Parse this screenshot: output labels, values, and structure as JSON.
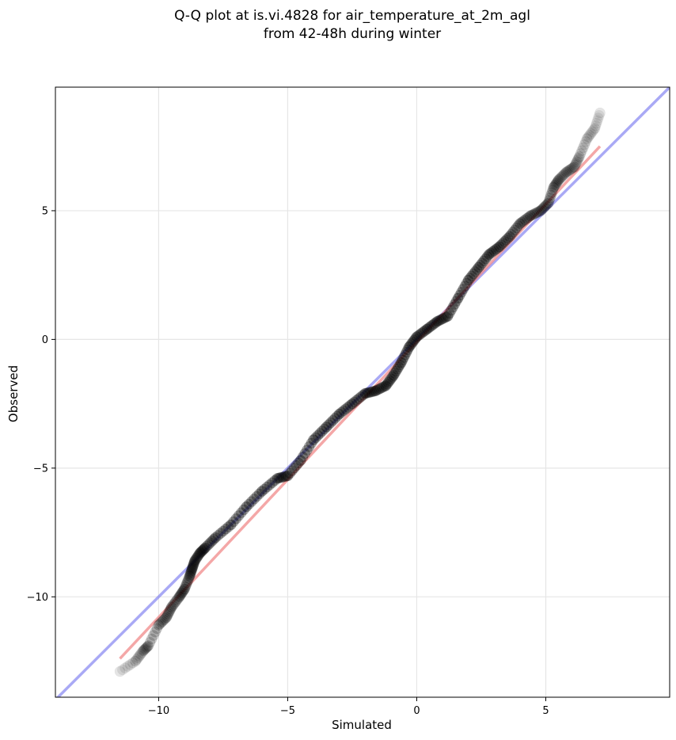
{
  "chart_data": {
    "type": "scatter",
    "title_line1": "Q-Q plot at is.vi.4828 for air_temperature_at_2m_agl",
    "title_line2": "from 42-48h during winter",
    "xlabel": "Simulated",
    "ylabel": "Observed",
    "xlim": [
      -14.0,
      9.8
    ],
    "ylim": [
      -13.9,
      9.8
    ],
    "grid": true,
    "x_ticks": [
      -10,
      -5,
      0,
      5
    ],
    "y_ticks": [
      -10,
      -5,
      0,
      5
    ],
    "x_tick_labels": [
      "−10",
      "−5",
      "0",
      "5"
    ],
    "y_tick_labels": [
      "−10",
      "−5",
      "0",
      "5"
    ],
    "identity_line": {
      "color": "#6f6fef"
    },
    "fit_line": {
      "color": "#f08a8a",
      "x": [
        -11.5,
        7.1
      ],
      "y": [
        -12.4,
        7.5
      ]
    },
    "colors": {
      "points": "#000000"
    },
    "points": {
      "x": [
        -11.5,
        -10.9,
        -10.6,
        -10.4,
        -10.0,
        -9.7,
        -9.5,
        -9.2,
        -9.0,
        -8.8,
        -8.7,
        -8.6,
        -8.4,
        -8.2,
        -7.8,
        -7.2,
        -6.6,
        -6.0,
        -5.4,
        -5.0,
        -4.5,
        -4.0,
        -3.5,
        -3.0,
        -2.5,
        -2.0,
        -1.6,
        -1.2,
        -0.9,
        -0.6,
        -0.3,
        0.0,
        0.4,
        0.8,
        1.2,
        1.6,
        2.0,
        2.4,
        2.8,
        3.2,
        3.6,
        4.0,
        4.4,
        4.8,
        5.1,
        5.3,
        5.5,
        5.8,
        6.1,
        6.3,
        6.6,
        6.9,
        7.1
      ],
      "y": [
        -12.9,
        -12.5,
        -12.1,
        -11.9,
        -11.1,
        -10.8,
        -10.4,
        -10.0,
        -9.7,
        -9.2,
        -8.9,
        -8.6,
        -8.3,
        -8.1,
        -7.7,
        -7.2,
        -6.5,
        -5.9,
        -5.4,
        -5.3,
        -4.7,
        -3.9,
        -3.4,
        -2.9,
        -2.5,
        -2.1,
        -2.0,
        -1.8,
        -1.4,
        -0.9,
        -0.3,
        0.1,
        0.4,
        0.7,
        0.9,
        1.6,
        2.3,
        2.8,
        3.3,
        3.6,
        4.0,
        4.5,
        4.8,
        5.0,
        5.3,
        5.9,
        6.2,
        6.5,
        6.7,
        7.1,
        7.8,
        8.2,
        8.8
      ]
    }
  }
}
